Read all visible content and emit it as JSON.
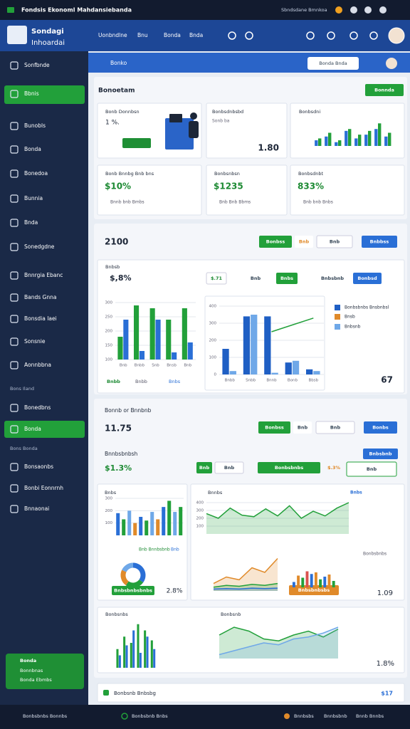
{
  "topbar": {
    "title": "Fondsis Ekonoml Mahdansiebanda",
    "status": "Sbndsdane Bmnkoa"
  },
  "header": {
    "logo": [
      "Sondagi",
      "Inhoardai"
    ],
    "nav": [
      "Uonbndlne",
      "Bnu",
      "Bonda",
      "Bnda"
    ]
  },
  "sidebar": {
    "items": [
      "Sonfbnde",
      "Bbnis",
      "Bunobls",
      "Bonda",
      "Bonedoa",
      "Bunnia",
      "Bnda",
      "Sonedgdne",
      "Bnnrgia Ebanc",
      "Bands Gnna",
      "Bonsdia Iaei",
      "Sonsnie",
      "Aonnbbna",
      "Bons Iland",
      "Bonedbns",
      "Bonda",
      "Bons Bonda",
      "Bonsaonbs",
      "Bonbi Eonnrnh",
      "Bnnaonai"
    ],
    "footer": [
      "Bonda",
      "Bonnbnas",
      "Bonda Ebmbs"
    ]
  },
  "toolbar": {
    "label": "Bonko",
    "search": "Bonda Bnda"
  },
  "overview": {
    "title": "Bonoetam",
    "button": "Bonnda",
    "cards": [
      {
        "title": "Bonb Donnbsn",
        "value": "1 %."
      },
      {
        "title": "Bonbsdnbsbd",
        "note": "Sonb ba",
        "value": "1.80"
      },
      {
        "title": "Bonbsdni"
      }
    ],
    "stats": [
      {
        "title": "Bonb Bnnbg Bnb bns",
        "value": "$10%",
        "note": "Bnnb bnb Bmbs"
      },
      {
        "title": "Bonbsnbsn",
        "value": "$1235",
        "note": "Bnb Bnb Bbms"
      },
      {
        "title": "Bonbsdnbt",
        "value": "833%",
        "note": "Bnb bnb Bnbs"
      }
    ]
  },
  "activity": {
    "value": "2100",
    "controls": [
      "Bonbss",
      "Bnb",
      "Bnb",
      "Bnbbss"
    ],
    "subtitle": "Bnbsb",
    "amount": "$,8%",
    "filters": [
      "$.71",
      "Bnb",
      "Bnbs",
      "Bnbsbnb",
      "Bonbsd"
    ],
    "legend": [
      "Bonbsbnbs Bnsbnbsl",
      "Bnsb",
      "Bnbsnb"
    ],
    "footer": [
      "Bnbb",
      "Bnbb",
      "Bnbs"
    ],
    "total": "67"
  },
  "report": {
    "title": "Bonnb or Bnnbnb",
    "value": "11.75",
    "controls": [
      "Bonbss",
      "Bnb",
      "Bnb",
      "Bonbs"
    ],
    "subtitle": "Bnnbsbnbsh",
    "action": "Bnbsbnb",
    "amount": "$1.3%",
    "filters": [
      "Bnb",
      "Bnb",
      "Bonbsbnbs",
      "$.3%",
      "Bnb"
    ],
    "cards": [
      {
        "title": "Bnbs",
        "labels": [
          "Bnb Bnnbsbnb",
          "Bnb"
        ],
        "button": "Bnbsbnbsbnbs",
        "value": "2.8%"
      },
      {
        "title": "Bnnbs",
        "tag": "Bnbs",
        "label": "Bonbsbnbs",
        "button": "Bnbsbnbsbs",
        "value": "1.09"
      },
      {
        "title": "Bonbsnbs",
        "title2": "Bonbsnb",
        "value": "1.8%"
      }
    ]
  },
  "footer_panel": {
    "title": "Bonbsnb Bnbsbg",
    "value": "$17"
  },
  "bottombar": [
    "Bonbsbnbs Bonnbs",
    "Bonbsbnb Bnbs",
    "Bnnbsbs",
    "Bnnbsbnb",
    "Bnnb Bnnbs"
  ],
  "chart_data": [
    {
      "type": "bar",
      "ylim": [
        0,
        14
      ],
      "series": [
        {
          "color": "#2a6fd6",
          "values": [
            3,
            5,
            2,
            8,
            4,
            6,
            9,
            5
          ]
        },
        {
          "color": "#22a03a",
          "values": [
            4,
            7,
            3,
            9,
            6,
            8,
            12,
            7
          ]
        }
      ]
    },
    {
      "type": "bar",
      "ylim": [
        100,
        300
      ],
      "yticks": [
        100,
        150,
        200,
        250,
        300
      ],
      "categories": [
        "Bnb",
        "Bnbb",
        "Snb",
        "Bnsb",
        "Bnb"
      ],
      "series": [
        {
          "color": "#22a03a",
          "values": [
            180,
            290,
            280,
            240,
            280
          ]
        },
        {
          "color": "#2a6fd6",
          "values": [
            240,
            130,
            240,
            125,
            160
          ]
        }
      ]
    },
    {
      "type": "bar",
      "ylim": [
        0,
        400
      ],
      "yticks": [
        0,
        100,
        200,
        300,
        400
      ],
      "categories": [
        "Bnbb",
        "Snbb",
        "Bnnb",
        "Bonb",
        "Bbsb"
      ],
      "series": [
        {
          "color": "#1f5fc4",
          "values": [
            150,
            340,
            340,
            70,
            30
          ]
        },
        {
          "color": "#6fa8e8",
          "values": [
            20,
            350,
            10,
            80,
            20
          ]
        },
        {
          "type": "line",
          "color": "#22a03a",
          "values": [
            null,
            null,
            250,
            290,
            330
          ]
        }
      ]
    },
    {
      "type": "area",
      "ylim": [
        0,
        500
      ],
      "yticks": [
        100,
        200,
        300,
        400
      ],
      "series": [
        {
          "color": "#22a03a",
          "values": [
            260,
            200,
            330,
            240,
            220,
            320,
            230,
            360,
            200,
            290,
            230,
            330,
            400
          ]
        }
      ]
    },
    {
      "type": "bar",
      "ylim": [
        0,
        300
      ],
      "yticks": [
        100,
        200,
        300
      ],
      "values": [
        180,
        130,
        200,
        100,
        150,
        120,
        190,
        130,
        230,
        280,
        190,
        230
      ],
      "colors": [
        "#2a6fd6",
        "#22a03a",
        "#6fa8e8",
        "#e08a2a",
        "#2a6fd6",
        "#22a03a",
        "#6fa8e8",
        "#e08a2a",
        "#2a6fd6",
        "#22a03a",
        "#6fa8e8",
        "#22a03a"
      ]
    },
    {
      "type": "pie",
      "values": [
        35,
        25,
        22,
        18
      ],
      "colors": [
        "#2a6fd6",
        "#22a03a",
        "#e08a2a",
        "#6fa8e8"
      ]
    },
    {
      "type": "area",
      "ylim": [
        0,
        400
      ],
      "series": [
        {
          "color": "#e08a2a",
          "values": [
            80,
            150,
            120,
            250,
            200,
            350
          ]
        },
        {
          "color": "#22a03a",
          "values": [
            40,
            60,
            50,
            70,
            60,
            80
          ]
        },
        {
          "color": "#2a6fd6",
          "values": [
            20,
            25,
            20,
            30,
            25,
            30
          ]
        }
      ]
    },
    {
      "type": "bar",
      "ylim": [
        0,
        40
      ],
      "values": [
        10,
        22,
        18,
        30,
        25,
        28,
        15,
        20,
        24,
        12
      ],
      "colors": [
        "#2a6fd6",
        "#e08a2a",
        "#22a03a",
        "#d9534f",
        "#2a6fd6",
        "#e08a2a",
        "#22a03a",
        "#2a6fd6",
        "#e08a2a",
        "#22a03a"
      ]
    },
    {
      "type": "bar",
      "ylim": [
        0,
        40
      ],
      "series": [
        {
          "color": "#22a03a",
          "values": [
            15,
            25,
            20,
            35,
            30,
            22
          ]
        },
        {
          "color": "#2a6fd6",
          "values": [
            10,
            18,
            30,
            12,
            25,
            15
          ]
        }
      ]
    },
    {
      "type": "area",
      "ylim": [
        0,
        100
      ],
      "series": [
        {
          "color": "#22a03a",
          "values": [
            60,
            80,
            70,
            50,
            45,
            60,
            70,
            55,
            75
          ]
        },
        {
          "color": "#6fa8e8",
          "values": [
            10,
            20,
            30,
            40,
            35,
            50,
            55,
            65,
            80
          ]
        }
      ]
    }
  ]
}
